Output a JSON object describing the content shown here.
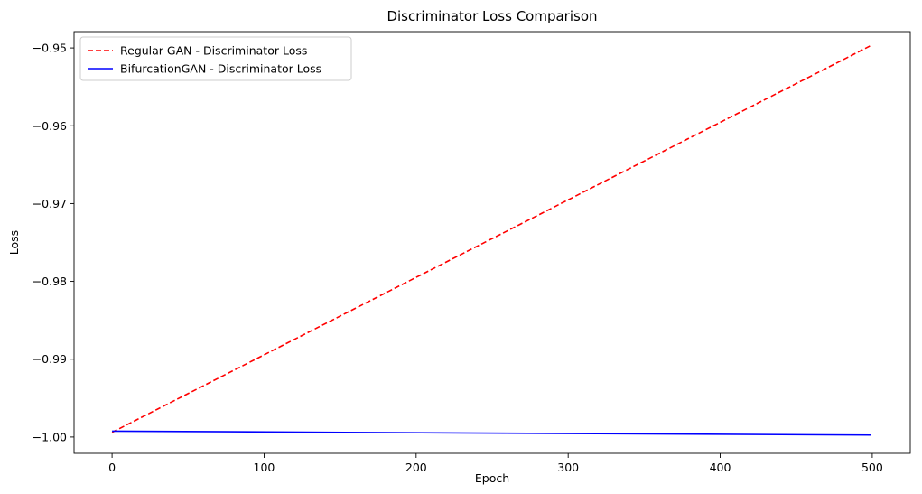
{
  "chart_data": {
    "type": "line",
    "title": "Discriminator Loss Comparison",
    "xlabel": "Epoch",
    "ylabel": "Loss",
    "xlim": [
      -25,
      525
    ],
    "ylim": [
      -1.0021,
      -0.9479
    ],
    "xticks": [
      0,
      100,
      200,
      300,
      400,
      500
    ],
    "yticks": [
      -1.0,
      -0.99,
      -0.98,
      -0.97,
      -0.96,
      -0.95
    ],
    "ytick_labels": [
      "−1.00",
      "−0.99",
      "−0.98",
      "−0.97",
      "−0.96",
      "−0.95"
    ],
    "grid": false,
    "legend_position": "top-left",
    "series": [
      {
        "name": "Regular GAN - Discriminator Loss",
        "color": "#ff0000",
        "style": "dashed",
        "x": [
          0,
          499
        ],
        "y": [
          -0.9994,
          -0.9497
        ]
      },
      {
        "name": "BifurcationGAN - Discriminator Loss",
        "color": "#0000ff",
        "style": "solid",
        "x": [
          0,
          499
        ],
        "y": [
          -0.99925,
          -0.99975
        ]
      }
    ]
  }
}
